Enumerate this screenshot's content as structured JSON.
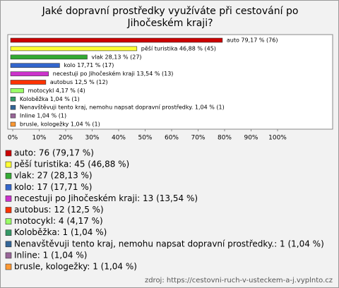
{
  "chart_data": {
    "type": "bar",
    "orientation": "horizontal",
    "title": "Jaké dopravní prostředky využíváte při cestování po Jihočeském kraji?",
    "categories": [
      "auto",
      "pěší turistika",
      "vlak",
      "kolo",
      "necestuji po Jihočeském kraji",
      "autobus",
      "motocykl",
      "Koloběžka",
      "Nenavštěvuji tento kraj, nemohu napsat dopravní prostředky.",
      "Inline",
      "brusle, kologežky"
    ],
    "values": [
      79.17,
      46.88,
      28.13,
      17.71,
      13.54,
      12.5,
      4.17,
      1.04,
      1.04,
      1.04,
      1.04
    ],
    "value_labels": [
      "auto 79,17 % (76)",
      "pěší turistika 46,88 % (45)",
      "vlak 28,13 % (27)",
      "kolo 17,71 % (17)",
      "necestuji po Jihočeském kraji 13,54 % (13)",
      "autobus 12,5 % (12)",
      "motocykl 4,17 % (4)",
      "Koloběžka 1,04 % (1)",
      "Nenavštěvuji tento kraj, nemohu napsat dopravní prostředky. 1,04 % (1)",
      "Inline 1,04 % (1)",
      "brusle, kologežky 1,04 % (1)"
    ],
    "legend_labels": [
      "auto: 76 (79,17 %)",
      "pěší turistika: 45 (46,88 %)",
      "vlak: 27 (28,13 %)",
      "kolo: 17 (17,71 %)",
      "necestuji po Jihočeském kraji: 13 (13,54 %)",
      "autobus: 12 (12,5 %)",
      "motocykl: 4 (4,17 %)",
      "Koloběžka: 1 (1,04 %)",
      "Nenavštěvuji tento kraj, nemohu napsat dopravní prostředky.: 1 (1,04 %)",
      "Inline: 1 (1,04 %)",
      "brusle, kologežky: 1 (1,04 %)"
    ],
    "colors": [
      "#cc0000",
      "#ffff33",
      "#33aa33",
      "#3366cc",
      "#cc33cc",
      "#ff3300",
      "#99ff66",
      "#339966",
      "#336699",
      "#996699",
      "#ff9933"
    ],
    "xlim": [
      0,
      100
    ],
    "xticks": [
      {
        "value": 0,
        "label": "0%"
      },
      {
        "value": 10,
        "label": "10%"
      },
      {
        "value": 20,
        "label": "20%"
      },
      {
        "value": 30,
        "label": "30%"
      },
      {
        "value": 40,
        "label": "40%"
      },
      {
        "value": 50,
        "label": "50%"
      },
      {
        "value": 60,
        "label": "60%"
      },
      {
        "value": 70,
        "label": "70%"
      },
      {
        "value": 80,
        "label": "80%"
      },
      {
        "value": 90,
        "label": "90%"
      },
      {
        "value": 100,
        "label": "100%"
      }
    ],
    "grid": false
  },
  "footer": "zdroj: https://cestovni-ruch-v-usteckem-a-j.vyplnto.cz"
}
